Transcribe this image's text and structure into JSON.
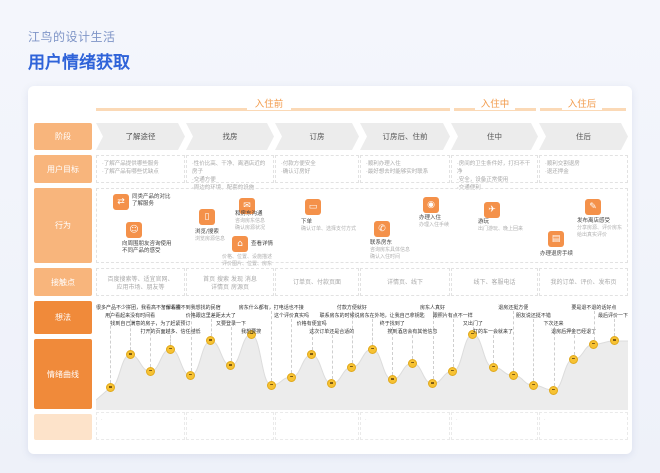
{
  "brand": "江鸟的设计生活",
  "title": "用户情绪获取",
  "phases": [
    "入住前",
    "入住中",
    "入住后"
  ],
  "row_labels": [
    "阶段",
    "用户目标",
    "行为",
    "接触点",
    "想法",
    "情绪曲线"
  ],
  "stages": [
    "了解途径",
    "找房",
    "订房",
    "订房后、住前",
    "住中",
    "住后"
  ],
  "goals": [
    "·了解产品提供哪些服务\n·了解产品有哪些优缺点",
    "·性价比高、干净、离酒店近的房子\n·交通方便\n·周边的环境、配套的设施",
    "·付款方便安全\n·确认订房好",
    "·顺利办理入住\n·最好想去时能够实时联系",
    "·房间的卫生条件好，打扫不干净\n·安全，设备正常使用\n·交通便利",
    "·顺利交割退房\n·退还押金"
  ],
  "actions": [
    {
      "title": "同类产品的对比\n了解服务",
      "sub": "",
      "icon": "compare-icon"
    },
    {
      "title": "向周围朋友咨询使用\n不同产品的感受",
      "sub": "",
      "icon": "people-icon"
    },
    {
      "title": "浏览/搜索",
      "sub": "浏览房源信息",
      "icon": "phone-icon"
    },
    {
      "title": "和房东沟通",
      "sub": "咨询房东信息\n确认房源状况",
      "icon": "chat-icon"
    },
    {
      "title": "查看详情",
      "sub": "价格、位置、设施描述\n评价图片、位置、房东",
      "icon": "home-icon"
    },
    {
      "title": "下单",
      "sub": "确认订单、选择支付方式",
      "icon": "cart-icon"
    },
    {
      "title": "联系房东",
      "sub": "咨询房东具体信息\n确认入住时间",
      "icon": "phone-call-icon"
    },
    {
      "title": "办理入住",
      "sub": "办理入住手续",
      "icon": "user-icon"
    },
    {
      "title": "游玩",
      "sub": "出门游玩、晚上回来",
      "icon": "trip-icon"
    },
    {
      "title": "办理退房手续",
      "sub": "",
      "icon": "checkout-icon"
    },
    {
      "title": "发布离店感受",
      "sub": "分享房源、评价房东\n给出真实评价",
      "icon": "review-icon"
    }
  ],
  "touchpoints": [
    "百度搜索等、适宜官网、\n应用市场、朋友等",
    "首页 搜索 发现 消息\n详情页 房源页",
    "订单页、付款页面",
    "详情页、线下",
    "线下、客服电话",
    "我的订单、评价、发布页"
  ],
  "thoughts": [
    "很多产品不少拼团，我看高不了解看看",
    "用户看起来没有时间看",
    "找到自己满意的房子，为了赶紧预订",
    "打开的页面越多、信任越低",
    "为什么搜不到我想找的民宿",
    "价格跟这里差距太大了",
    "又要登录一下",
    "我想要搜",
    "房东什么都有，打电话也不接",
    "这个评价真实吗",
    "价格有便宜吗",
    "这次订单还是合适的",
    "付款方便就好",
    "联系房东的时候说房东在外地，让我自己拿钥匙",
    "终于找到了",
    "搜到酒店会有其他信息",
    "房东人真好",
    "跟照片有点不一样",
    "又出门了",
    "打的车一会就来了",
    "退房还挺方便",
    "朋友说还挺不错",
    "下次还来",
    "退房后押金已经退了",
    "要是退不退的话好点",
    "最后评价一下"
  ],
  "emotion_values": [
    0.15,
    0.55,
    0.35,
    0.62,
    0.3,
    0.72,
    0.42,
    0.8,
    0.18,
    0.28,
    0.55,
    0.2,
    0.4,
    0.62,
    0.25,
    0.45,
    0.2,
    0.35,
    0.8,
    0.4,
    0.3,
    0.18,
    0.12,
    0.5,
    0.68,
    0.72
  ],
  "bottom_cells": [
    "·",
    "·",
    "·",
    "·",
    "·",
    "·"
  ],
  "colors": {
    "accent": "#f08a3a",
    "accent_light": "#f8b57c",
    "title_blue": "#2f63d9",
    "curve_fill": "#eaeaea"
  }
}
